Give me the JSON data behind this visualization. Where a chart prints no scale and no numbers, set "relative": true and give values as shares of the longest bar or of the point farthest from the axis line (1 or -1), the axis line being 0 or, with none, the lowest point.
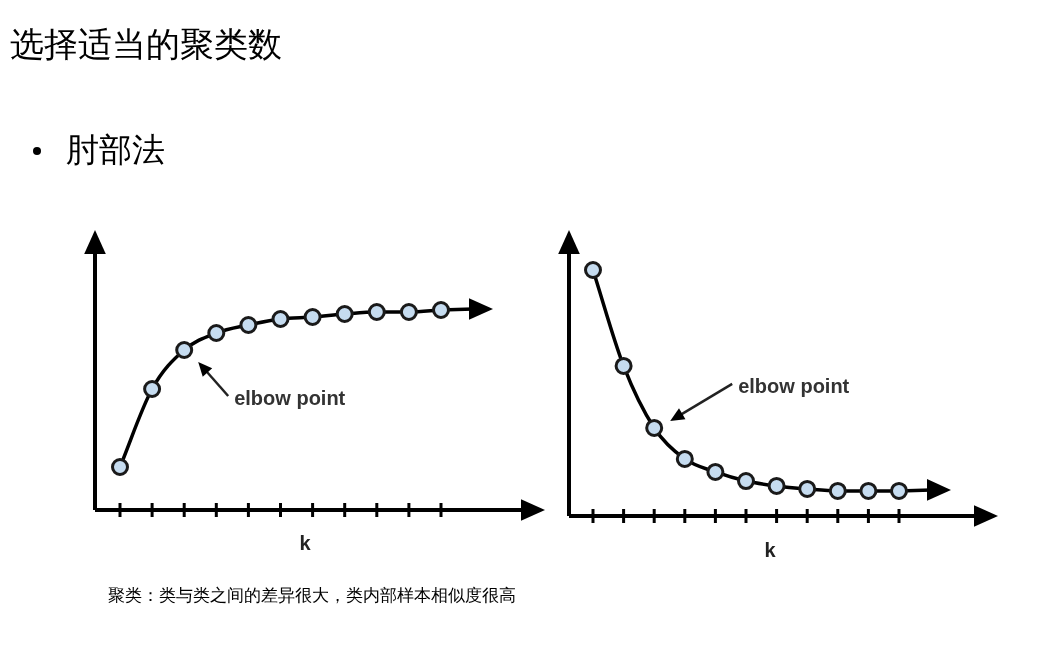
{
  "chart_data": [
    {
      "type": "line",
      "title": "选择适当的聚类数",
      "subtitle": "肘部法",
      "xlabel": "k",
      "relative": true,
      "categories": [
        null,
        null,
        null,
        null,
        null,
        null,
        null,
        null,
        null,
        null,
        null
      ],
      "series": [
        {
          "color": "#000000",
          "values": [
            0.215,
            0.605,
            0.8,
            0.885,
            0.925,
            0.955,
            0.965,
            0.98,
            0.99,
            0.99,
            1
          ]
        }
      ],
      "marker": "circle",
      "annotations": [
        "elbow point",
        "聚类：类与类之间的差异很大，类内部样本相似度很高"
      ]
    },
    {
      "type": "line",
      "xlabel": "k",
      "relative": true,
      "categories": [
        null,
        null,
        null,
        null,
        null,
        null,
        null,
        null,
        null,
        null,
        null
      ],
      "series": [
        {
          "color": "#000000",
          "values": [
            1,
            0.61,
            0.358,
            0.232,
            0.179,
            0.142,
            0.122,
            0.11,
            0.102,
            0.102,
            0.102
          ]
        }
      ],
      "marker": "circle",
      "annotations": [
        "elbow point"
      ]
    }
  ]
}
